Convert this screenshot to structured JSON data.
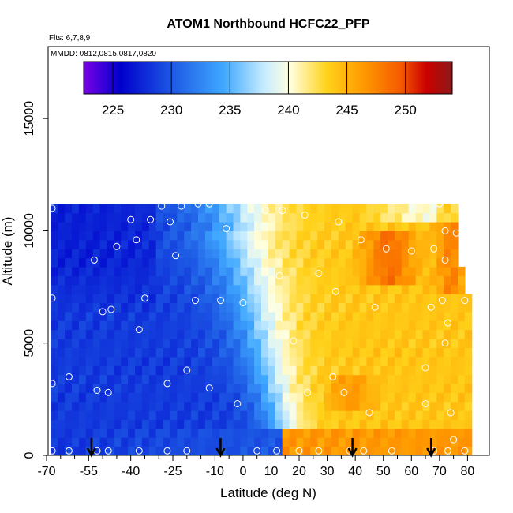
{
  "chart_data": {
    "type": "heatmap",
    "title": "ATOM1 Northbound HCFC22_PFP",
    "flights_note": "Flts: 6,7,8,9",
    "dates_note": "MMDD: 0812,0815,0817,0820",
    "xlabel": "Latitude (deg N)",
    "ylabel": "Altitude (m)",
    "xlim": [
      -70,
      83
    ],
    "ylim": [
      0,
      17500
    ],
    "x_ticks": [
      -70,
      -55,
      -40,
      -25,
      -10,
      0,
      10,
      20,
      30,
      40,
      50,
      60,
      70,
      80
    ],
    "x_tick_labels": [
      "-70",
      "-55",
      "-40",
      "-25",
      "-10",
      "0",
      "10",
      "20",
      "30",
      "40",
      "50",
      "60",
      "70",
      "80"
    ],
    "x_minor_ticks": [
      -65,
      -60,
      -50,
      -45,
      -35,
      -30,
      -20,
      -15,
      -5,
      5,
      15,
      25,
      35,
      45,
      55,
      65,
      75
    ],
    "y_ticks": [
      0,
      5000,
      10000,
      15000
    ],
    "y_tick_labels": [
      "0",
      "5000",
      "10000",
      "15000"
    ],
    "colorbar": {
      "min": 222.5,
      "max": 254,
      "ticks": [
        225,
        230,
        235,
        240,
        245,
        250
      ],
      "tick_labels": [
        "225",
        "230",
        "235",
        "240",
        "245",
        "250"
      ],
      "colors": [
        "#7a00e6",
        "#0000cc",
        "#1f5fe6",
        "#40a8ff",
        "#b3e0ff",
        "#ffffe6",
        "#ffe633",
        "#ff9900",
        "#e63300",
        "#b30000",
        "#8c1a1a"
      ]
    },
    "profile_latitudes": [
      -54,
      -8,
      39,
      67
    ],
    "sample_points": [
      {
        "lat": -68,
        "alt": 11000
      },
      {
        "lat": -68,
        "alt": 7000
      },
      {
        "lat": -68,
        "alt": 3200
      },
      {
        "lat": -68,
        "alt": 200
      },
      {
        "lat": -62,
        "alt": 3500
      },
      {
        "lat": -62,
        "alt": 200
      },
      {
        "lat": -53,
        "alt": 8700
      },
      {
        "lat": -52,
        "alt": 2900
      },
      {
        "lat": -52,
        "alt": 200
      },
      {
        "lat": -50,
        "alt": 6400
      },
      {
        "lat": -48,
        "alt": 2800
      },
      {
        "lat": -47,
        "alt": 6500
      },
      {
        "lat": -48,
        "alt": 200
      },
      {
        "lat": -45,
        "alt": 9300
      },
      {
        "lat": -40,
        "alt": 10500
      },
      {
        "lat": -38,
        "alt": 9600
      },
      {
        "lat": -37,
        "alt": 5600
      },
      {
        "lat": -35,
        "alt": 7000
      },
      {
        "lat": -37,
        "alt": 200
      },
      {
        "lat": -33,
        "alt": 10500
      },
      {
        "lat": -29,
        "alt": 11100
      },
      {
        "lat": -26,
        "alt": 10400
      },
      {
        "lat": -27,
        "alt": 3200
      },
      {
        "lat": -27,
        "alt": 200
      },
      {
        "lat": -24,
        "alt": 8900
      },
      {
        "lat": -22,
        "alt": 11100
      },
      {
        "lat": -20,
        "alt": 3800
      },
      {
        "lat": -20,
        "alt": 200
      },
      {
        "lat": -17,
        "alt": 6900
      },
      {
        "lat": -16,
        "alt": 11200
      },
      {
        "lat": -12,
        "alt": 11200
      },
      {
        "lat": -12,
        "alt": 3000
      },
      {
        "lat": -8,
        "alt": 6900
      },
      {
        "lat": -6,
        "alt": 10100
      },
      {
        "lat": -2,
        "alt": 2300
      },
      {
        "lat": 0,
        "alt": 6800
      },
      {
        "lat": 5,
        "alt": 200
      },
      {
        "lat": 8,
        "alt": 10900
      },
      {
        "lat": 12,
        "alt": 200
      },
      {
        "lat": 13,
        "alt": 8000
      },
      {
        "lat": 14,
        "alt": 10900
      },
      {
        "lat": 18,
        "alt": 5100
      },
      {
        "lat": 20,
        "alt": 200
      },
      {
        "lat": 22,
        "alt": 10700
      },
      {
        "lat": 23,
        "alt": 2800
      },
      {
        "lat": 27,
        "alt": 8100
      },
      {
        "lat": 27,
        "alt": 200
      },
      {
        "lat": 32,
        "alt": 3500
      },
      {
        "lat": 33,
        "alt": 7300
      },
      {
        "lat": 34,
        "alt": 10400
      },
      {
        "lat": 36,
        "alt": 2800
      },
      {
        "lat": 38,
        "alt": 200
      },
      {
        "lat": 42,
        "alt": 9600
      },
      {
        "lat": 43,
        "alt": 200
      },
      {
        "lat": 45,
        "alt": 1900
      },
      {
        "lat": 47,
        "alt": 6600
      },
      {
        "lat": 51,
        "alt": 9200
      },
      {
        "lat": 53,
        "alt": 200
      },
      {
        "lat": 60,
        "alt": 9100
      },
      {
        "lat": 65,
        "alt": 3900
      },
      {
        "lat": 65,
        "alt": 2300
      },
      {
        "lat": 67,
        "alt": 6600
      },
      {
        "lat": 68,
        "alt": 9200
      },
      {
        "lat": 68,
        "alt": 200
      },
      {
        "lat": 70,
        "alt": 11200
      },
      {
        "lat": 71,
        "alt": 6900
      },
      {
        "lat": 72,
        "alt": 10000
      },
      {
        "lat": 72,
        "alt": 8700
      },
      {
        "lat": 72,
        "alt": 5000
      },
      {
        "lat": 73,
        "alt": 5900
      },
      {
        "lat": 73,
        "alt": 200
      },
      {
        "lat": 74,
        "alt": 1900
      },
      {
        "lat": 75,
        "alt": 700
      },
      {
        "lat": 76,
        "alt": 9900
      },
      {
        "lat": 79,
        "alt": 200
      },
      {
        "lat": 79,
        "alt": 6900
      }
    ]
  }
}
